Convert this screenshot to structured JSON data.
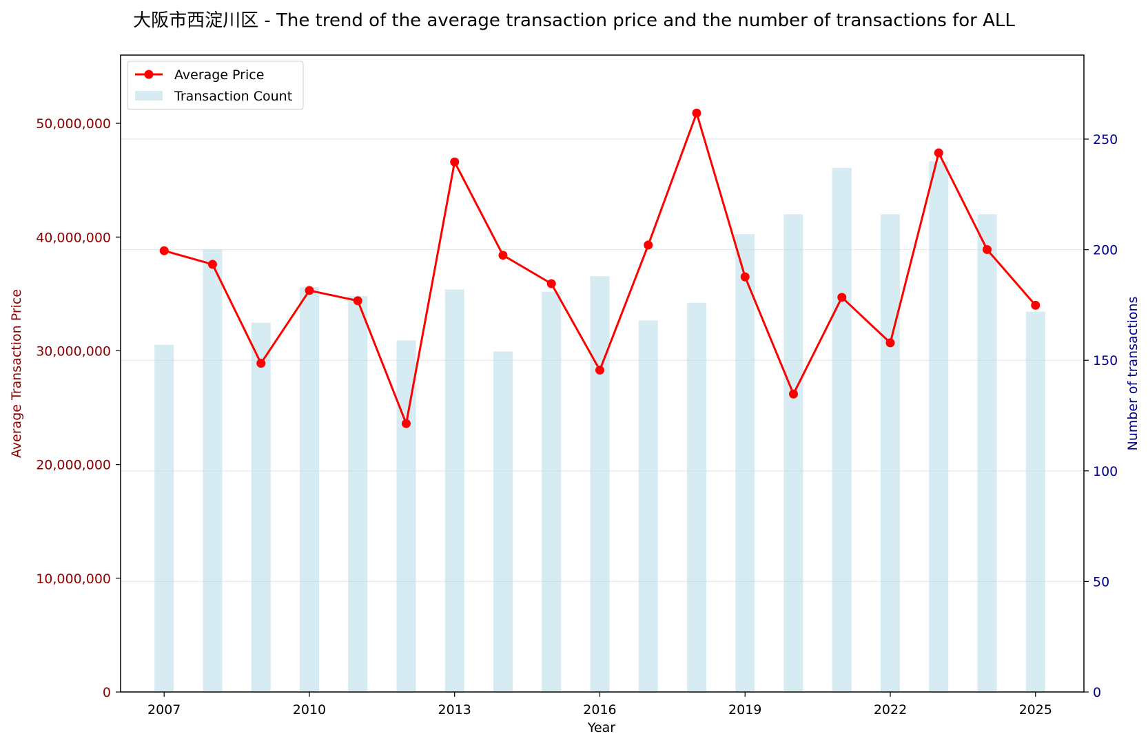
{
  "chart_data": {
    "type": "bar+line",
    "title": "大阪市西淀川区 - The trend of the average transaction price and the number of transactions for ALL",
    "xlabel": "Year",
    "ylabel_left": "Average Transaction Price",
    "ylabel_right": "Number of transactions",
    "x": [
      2007,
      2008,
      2009,
      2010,
      2011,
      2012,
      2013,
      2014,
      2015,
      2016,
      2017,
      2018,
      2019,
      2020,
      2021,
      2022,
      2023,
      2024,
      2025
    ],
    "x_ticks": [
      "2007",
      "2010",
      "2013",
      "2016",
      "2019",
      "2022",
      "2025"
    ],
    "y_left_ticks": [
      "0",
      "10,000,000",
      "20,000,000",
      "30,000,000",
      "40,000,000",
      "50,000,000"
    ],
    "y_right_ticks": [
      "0",
      "50",
      "100",
      "150",
      "200",
      "250"
    ],
    "ylim_left": [
      0,
      56000000
    ],
    "ylim_right": [
      0,
      288
    ],
    "series": [
      {
        "name": "Average Price",
        "kind": "line",
        "axis": "left",
        "color": "#ff0000",
        "values": [
          38800000,
          37600000,
          28900000,
          35300000,
          34400000,
          23600000,
          46600000,
          38400000,
          35900000,
          28300000,
          39300000,
          50900000,
          36500000,
          26200000,
          34700000,
          30700000,
          47400000,
          38900000,
          34000000
        ]
      },
      {
        "name": "Transaction Count",
        "kind": "bar",
        "axis": "right",
        "color": "#add8e6",
        "values": [
          157,
          200,
          167,
          183,
          179,
          159,
          182,
          154,
          181,
          188,
          168,
          176,
          207,
          216,
          237,
          216,
          240,
          216,
          172
        ]
      }
    ],
    "grid": true,
    "legend_position": "top-left",
    "colors": {
      "left_axis": "#8b0000",
      "right_axis": "#00008b",
      "line": "#ff0000",
      "bar": "#add8e6"
    }
  }
}
